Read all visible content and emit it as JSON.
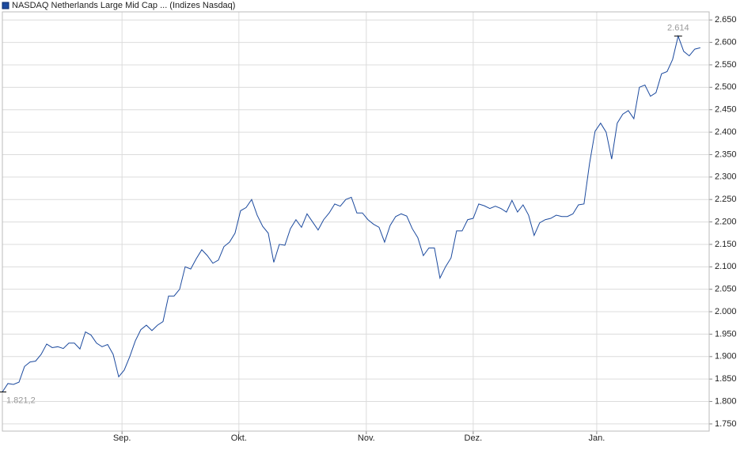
{
  "chart_data": {
    "type": "line",
    "series": [
      {
        "name": "NASDAQ Netherlands Large Mid Cap ... (Indizes Nasdaq)",
        "color": "#1c4a9e",
        "values": [
          1821.2,
          1840,
          1838,
          1843,
          1878,
          1888,
          1890,
          1905,
          1928,
          1920,
          1922,
          1918,
          1930,
          1930,
          1917,
          1955,
          1948,
          1930,
          1922,
          1927,
          1905,
          1855,
          1870,
          1900,
          1935,
          1960,
          1970,
          1958,
          1970,
          1978,
          2035,
          2035,
          2050,
          2100,
          2095,
          2118,
          2138,
          2125,
          2108,
          2115,
          2145,
          2155,
          2175,
          2225,
          2232,
          2250,
          2215,
          2190,
          2175,
          2110,
          2150,
          2148,
          2185,
          2205,
          2188,
          2218,
          2200,
          2182,
          2205,
          2220,
          2240,
          2235,
          2250,
          2255,
          2220,
          2220,
          2205,
          2195,
          2188,
          2155,
          2192,
          2212,
          2218,
          2213,
          2185,
          2165,
          2125,
          2142,
          2142,
          2075,
          2100,
          2120,
          2180,
          2180,
          2205,
          2208,
          2240,
          2236,
          2230,
          2235,
          2230,
          2222,
          2248,
          2222,
          2238,
          2215,
          2170,
          2198,
          2205,
          2208,
          2215,
          2212,
          2212,
          2218,
          2238,
          2240,
          2330,
          2402,
          2420,
          2400,
          2340,
          2420,
          2440,
          2448,
          2430,
          2500,
          2505,
          2480,
          2488,
          2530,
          2535,
          2562,
          2614,
          2580,
          2570,
          2585,
          2588
        ]
      }
    ],
    "annotations": [
      {
        "text": "2.614",
        "value": 2614
      },
      {
        "text": "1.821,2",
        "value": 1821.2
      }
    ],
    "xlim": [
      0,
      127.6
    ],
    "xticks": [
      {
        "value": 21.6,
        "label": "Sep."
      },
      {
        "value": 42.7,
        "label": "Okt."
      },
      {
        "value": 65.7,
        "label": "Nov."
      },
      {
        "value": 85,
        "label": "Dez."
      },
      {
        "value": 107.3,
        "label": "Jan."
      }
    ],
    "ylim": [
      1734,
      2668
    ],
    "yticks": [
      {
        "value": 1750,
        "label": "1.750"
      },
      {
        "value": 1800,
        "label": "1.800"
      },
      {
        "value": 1850,
        "label": "1.850"
      },
      {
        "value": 1900,
        "label": "1.900"
      },
      {
        "value": 1950,
        "label": "1.950"
      },
      {
        "value": 2000,
        "label": "2.000"
      },
      {
        "value": 2050,
        "label": "2.050"
      },
      {
        "value": 2100,
        "label": "2.100"
      },
      {
        "value": 2150,
        "label": "2.150"
      },
      {
        "value": 2200,
        "label": "2.200"
      },
      {
        "value": 2250,
        "label": "2.250"
      },
      {
        "value": 2300,
        "label": "2.300"
      },
      {
        "value": 2350,
        "label": "2.350"
      },
      {
        "value": 2400,
        "label": "2.400"
      },
      {
        "value": 2450,
        "label": "2.450"
      },
      {
        "value": 2500,
        "label": "2.500"
      },
      {
        "value": 2550,
        "label": "2.550"
      },
      {
        "value": 2600,
        "label": "2.600"
      },
      {
        "value": 2650,
        "label": "2.650"
      }
    ],
    "grid": true
  }
}
